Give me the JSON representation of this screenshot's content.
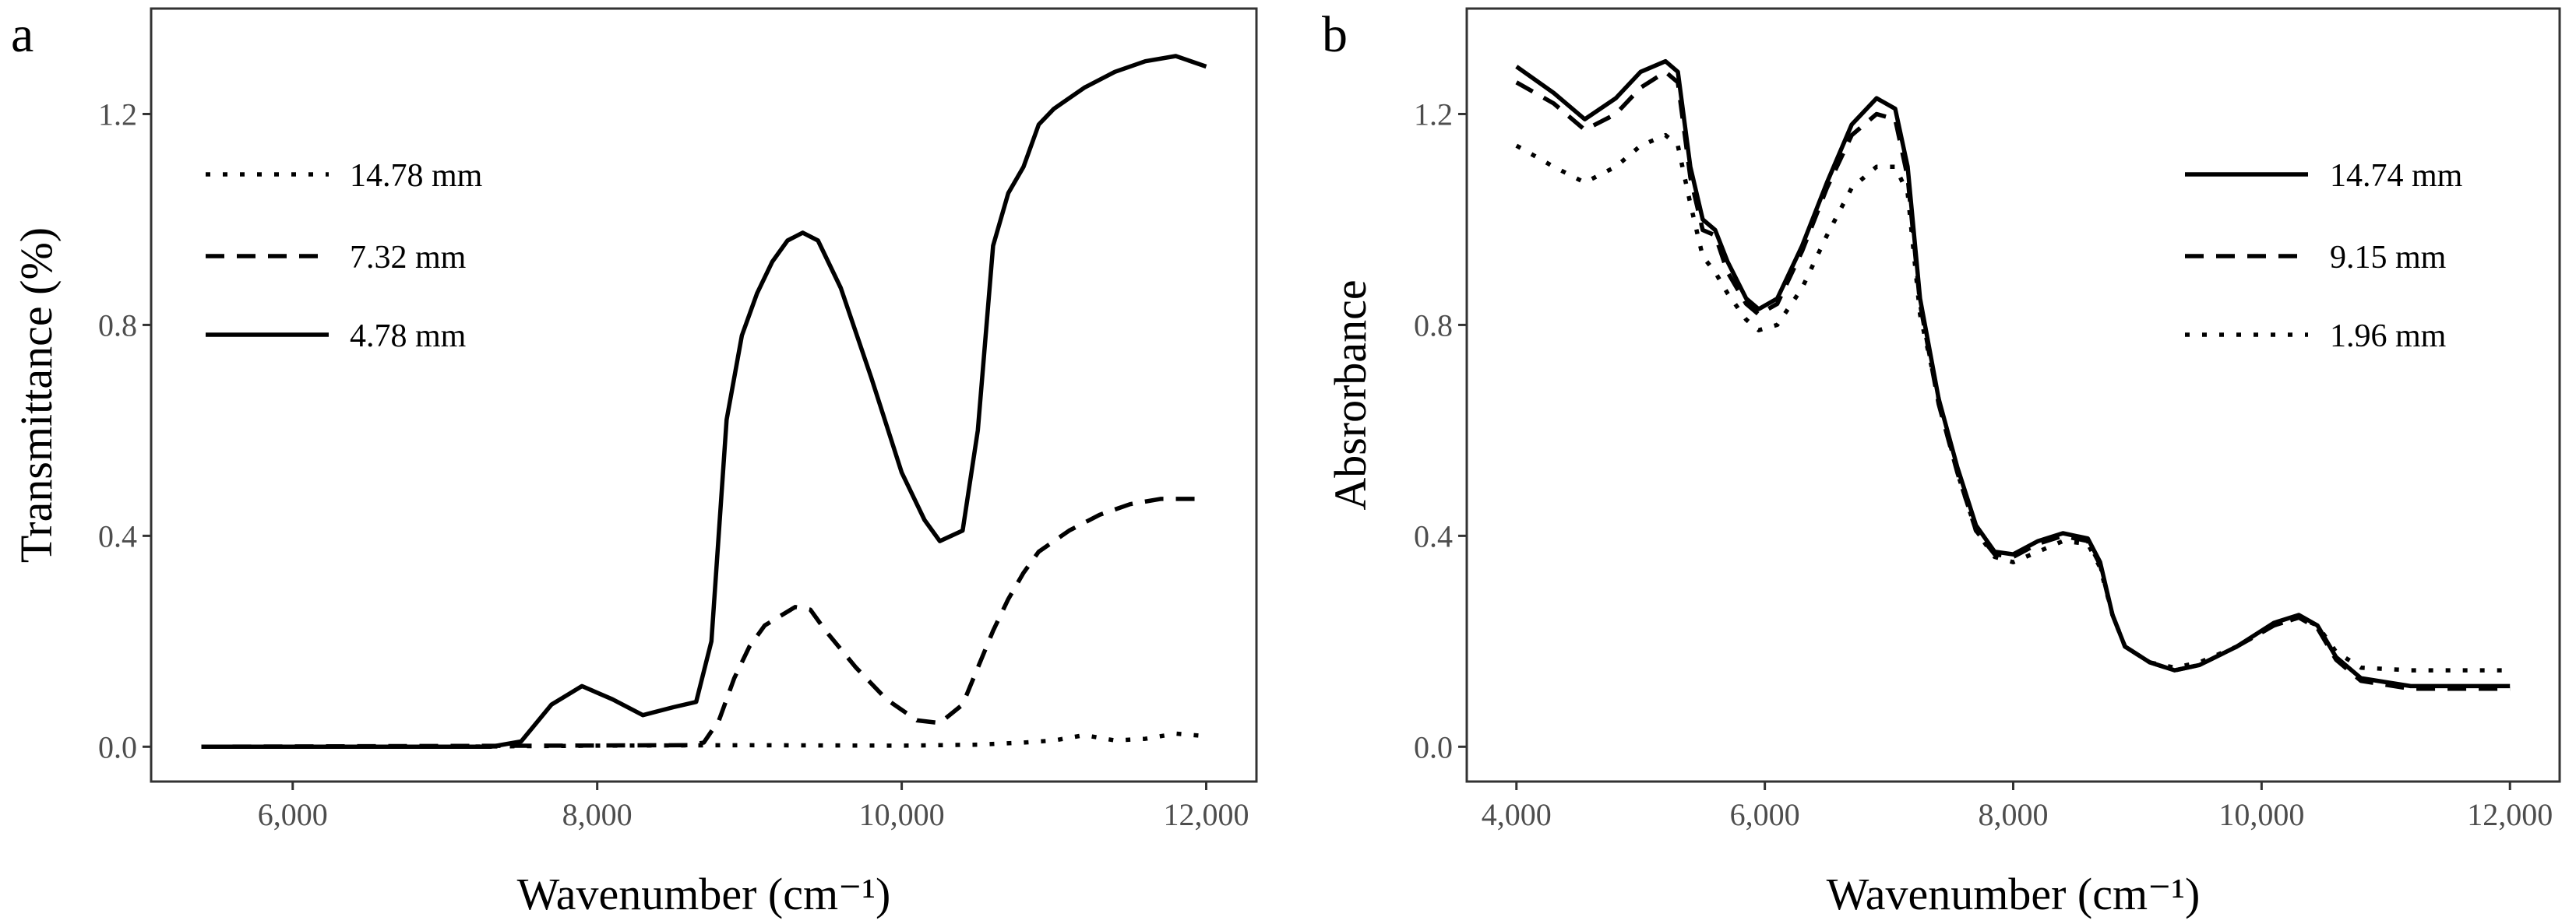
{
  "chart_data": [
    {
      "type": "line",
      "panel_label": "a",
      "xlabel": "Wavenumber (cm⁻¹)",
      "ylabel": "Transmittance (%)",
      "xlim": [
        5070,
        12330
      ],
      "ylim": [
        -0.066,
        1.4
      ],
      "xticks": [
        6000,
        8000,
        10000,
        12000
      ],
      "xtick_labels": [
        "6,000",
        "8,000",
        "10,000",
        "12,000"
      ],
      "yticks": [
        0.0,
        0.4,
        0.8,
        1.2
      ],
      "ytick_labels": [
        "0.0",
        "0.4",
        "0.8",
        "1.2"
      ],
      "grid": false,
      "legend_position": "top-left",
      "series": [
        {
          "name": "14.78 mm",
          "linetype": "dotted",
          "x": [
            5400,
            7000,
            8000,
            9000,
            10000,
            10500,
            10800,
            11000,
            11200,
            11400,
            11600,
            11800,
            12000
          ],
          "y": [
            0,
            0,
            0.002,
            0.003,
            0.002,
            0.004,
            0.008,
            0.012,
            0.022,
            0.012,
            0.015,
            0.025,
            0.02
          ]
        },
        {
          "name": "7.32 mm",
          "linetype": "dashed",
          "x": [
            5400,
            8600,
            8700,
            8800,
            8900,
            9000,
            9100,
            9300,
            9400,
            9500,
            9700,
            9900,
            10100,
            10250,
            10400,
            10500,
            10600,
            10700,
            10800,
            10900,
            11100,
            11300,
            11500,
            11700,
            12000
          ],
          "y": [
            0,
            0.003,
            0.008,
            0.05,
            0.13,
            0.19,
            0.23,
            0.265,
            0.26,
            0.22,
            0.15,
            0.09,
            0.05,
            0.045,
            0.08,
            0.15,
            0.22,
            0.28,
            0.33,
            0.37,
            0.41,
            0.44,
            0.46,
            0.47,
            0.47
          ]
        },
        {
          "name": "4.78 mm",
          "linetype": "solid",
          "x": [
            5400,
            7300,
            7500,
            7700,
            7900,
            8100,
            8300,
            8500,
            8650,
            8750,
            8850,
            8950,
            9050,
            9150,
            9250,
            9350,
            9450,
            9600,
            9800,
            10000,
            10150,
            10250,
            10400,
            10500,
            10600,
            10700,
            10800,
            10900,
            11000,
            11200,
            11400,
            11600,
            11800,
            12000
          ],
          "y": [
            0,
            0,
            0.01,
            0.08,
            0.115,
            0.09,
            0.06,
            0.075,
            0.085,
            0.2,
            0.62,
            0.78,
            0.86,
            0.92,
            0.96,
            0.975,
            0.96,
            0.87,
            0.7,
            0.52,
            0.43,
            0.39,
            0.41,
            0.6,
            0.95,
            1.05,
            1.1,
            1.18,
            1.21,
            1.25,
            1.28,
            1.3,
            1.31,
            1.29
          ]
        }
      ]
    },
    {
      "type": "line",
      "panel_label": "b",
      "xlabel": "Wavenumber (cm⁻¹)",
      "ylabel": "Absrorbance",
      "xlim": [
        3600,
        12400
      ],
      "ylim": [
        -0.066,
        1.4
      ],
      "xticks": [
        4000,
        6000,
        8000,
        10000,
        12000
      ],
      "xtick_labels": [
        "4,000",
        "6,000",
        "8,000",
        "10,000",
        "12,000"
      ],
      "yticks": [
        0.0,
        0.4,
        0.8,
        1.2
      ],
      "ytick_labels": [
        "0.0",
        "0.4",
        "0.8",
        "1.2"
      ],
      "grid": false,
      "legend_position": "top-right",
      "series": [
        {
          "name": "14.74 mm",
          "linetype": "solid",
          "x": [
            4000,
            4300,
            4550,
            4800,
            5000,
            5200,
            5300,
            5400,
            5500,
            5600,
            5700,
            5850,
            5950,
            6100,
            6300,
            6500,
            6700,
            6900,
            7050,
            7150,
            7250,
            7400,
            7550,
            7700,
            7850,
            8000,
            8200,
            8400,
            8600,
            8700,
            8800,
            8900,
            9100,
            9300,
            9500,
            9800,
            10100,
            10300,
            10450,
            10600,
            10800,
            11200,
            12000
          ],
          "y": [
            1.29,
            1.24,
            1.19,
            1.23,
            1.28,
            1.3,
            1.28,
            1.1,
            1.0,
            0.98,
            0.92,
            0.85,
            0.83,
            0.85,
            0.95,
            1.07,
            1.18,
            1.23,
            1.21,
            1.1,
            0.85,
            0.66,
            0.53,
            0.42,
            0.37,
            0.365,
            0.39,
            0.405,
            0.395,
            0.35,
            0.25,
            0.19,
            0.16,
            0.145,
            0.155,
            0.19,
            0.235,
            0.25,
            0.23,
            0.17,
            0.13,
            0.115,
            0.115
          ]
        },
        {
          "name": "9.15 mm",
          "linetype": "dashed",
          "x": [
            4000,
            4300,
            4550,
            4800,
            5000,
            5200,
            5300,
            5400,
            5500,
            5600,
            5700,
            5850,
            5950,
            6100,
            6300,
            6500,
            6700,
            6900,
            7050,
            7150,
            7250,
            7400,
            7550,
            7700,
            7850,
            8000,
            8200,
            8400,
            8600,
            8700,
            8800,
            8900,
            9100,
            9300,
            9500,
            9800,
            10100,
            10300,
            10450,
            10600,
            10800,
            11200,
            12000
          ],
          "y": [
            1.26,
            1.22,
            1.17,
            1.2,
            1.25,
            1.28,
            1.26,
            1.08,
            0.98,
            0.97,
            0.9,
            0.84,
            0.82,
            0.84,
            0.94,
            1.06,
            1.16,
            1.2,
            1.19,
            1.08,
            0.84,
            0.65,
            0.52,
            0.41,
            0.365,
            0.36,
            0.385,
            0.4,
            0.39,
            0.345,
            0.25,
            0.19,
            0.16,
            0.145,
            0.155,
            0.19,
            0.23,
            0.245,
            0.225,
            0.165,
            0.125,
            0.11,
            0.11
          ]
        },
        {
          "name": "1.96 mm",
          "linetype": "dotted",
          "x": [
            4000,
            4300,
            4550,
            4800,
            5000,
            5200,
            5300,
            5400,
            5500,
            5600,
            5700,
            5850,
            5950,
            6100,
            6300,
            6500,
            6700,
            6900,
            7050,
            7150,
            7250,
            7400,
            7550,
            7700,
            7850,
            8000,
            8200,
            8400,
            8600,
            8700,
            8800,
            8900,
            9100,
            9300,
            9500,
            9800,
            10100,
            10300,
            10450,
            10600,
            10800,
            11200,
            12000
          ],
          "y": [
            1.14,
            1.1,
            1.07,
            1.1,
            1.14,
            1.16,
            1.14,
            1.03,
            0.93,
            0.9,
            0.86,
            0.81,
            0.79,
            0.8,
            0.87,
            0.97,
            1.06,
            1.1,
            1.1,
            1.05,
            0.82,
            0.66,
            0.52,
            0.41,
            0.36,
            0.35,
            0.37,
            0.39,
            0.385,
            0.34,
            0.25,
            0.19,
            0.16,
            0.15,
            0.16,
            0.19,
            0.23,
            0.245,
            0.23,
            0.18,
            0.15,
            0.145,
            0.145
          ]
        }
      ]
    }
  ]
}
